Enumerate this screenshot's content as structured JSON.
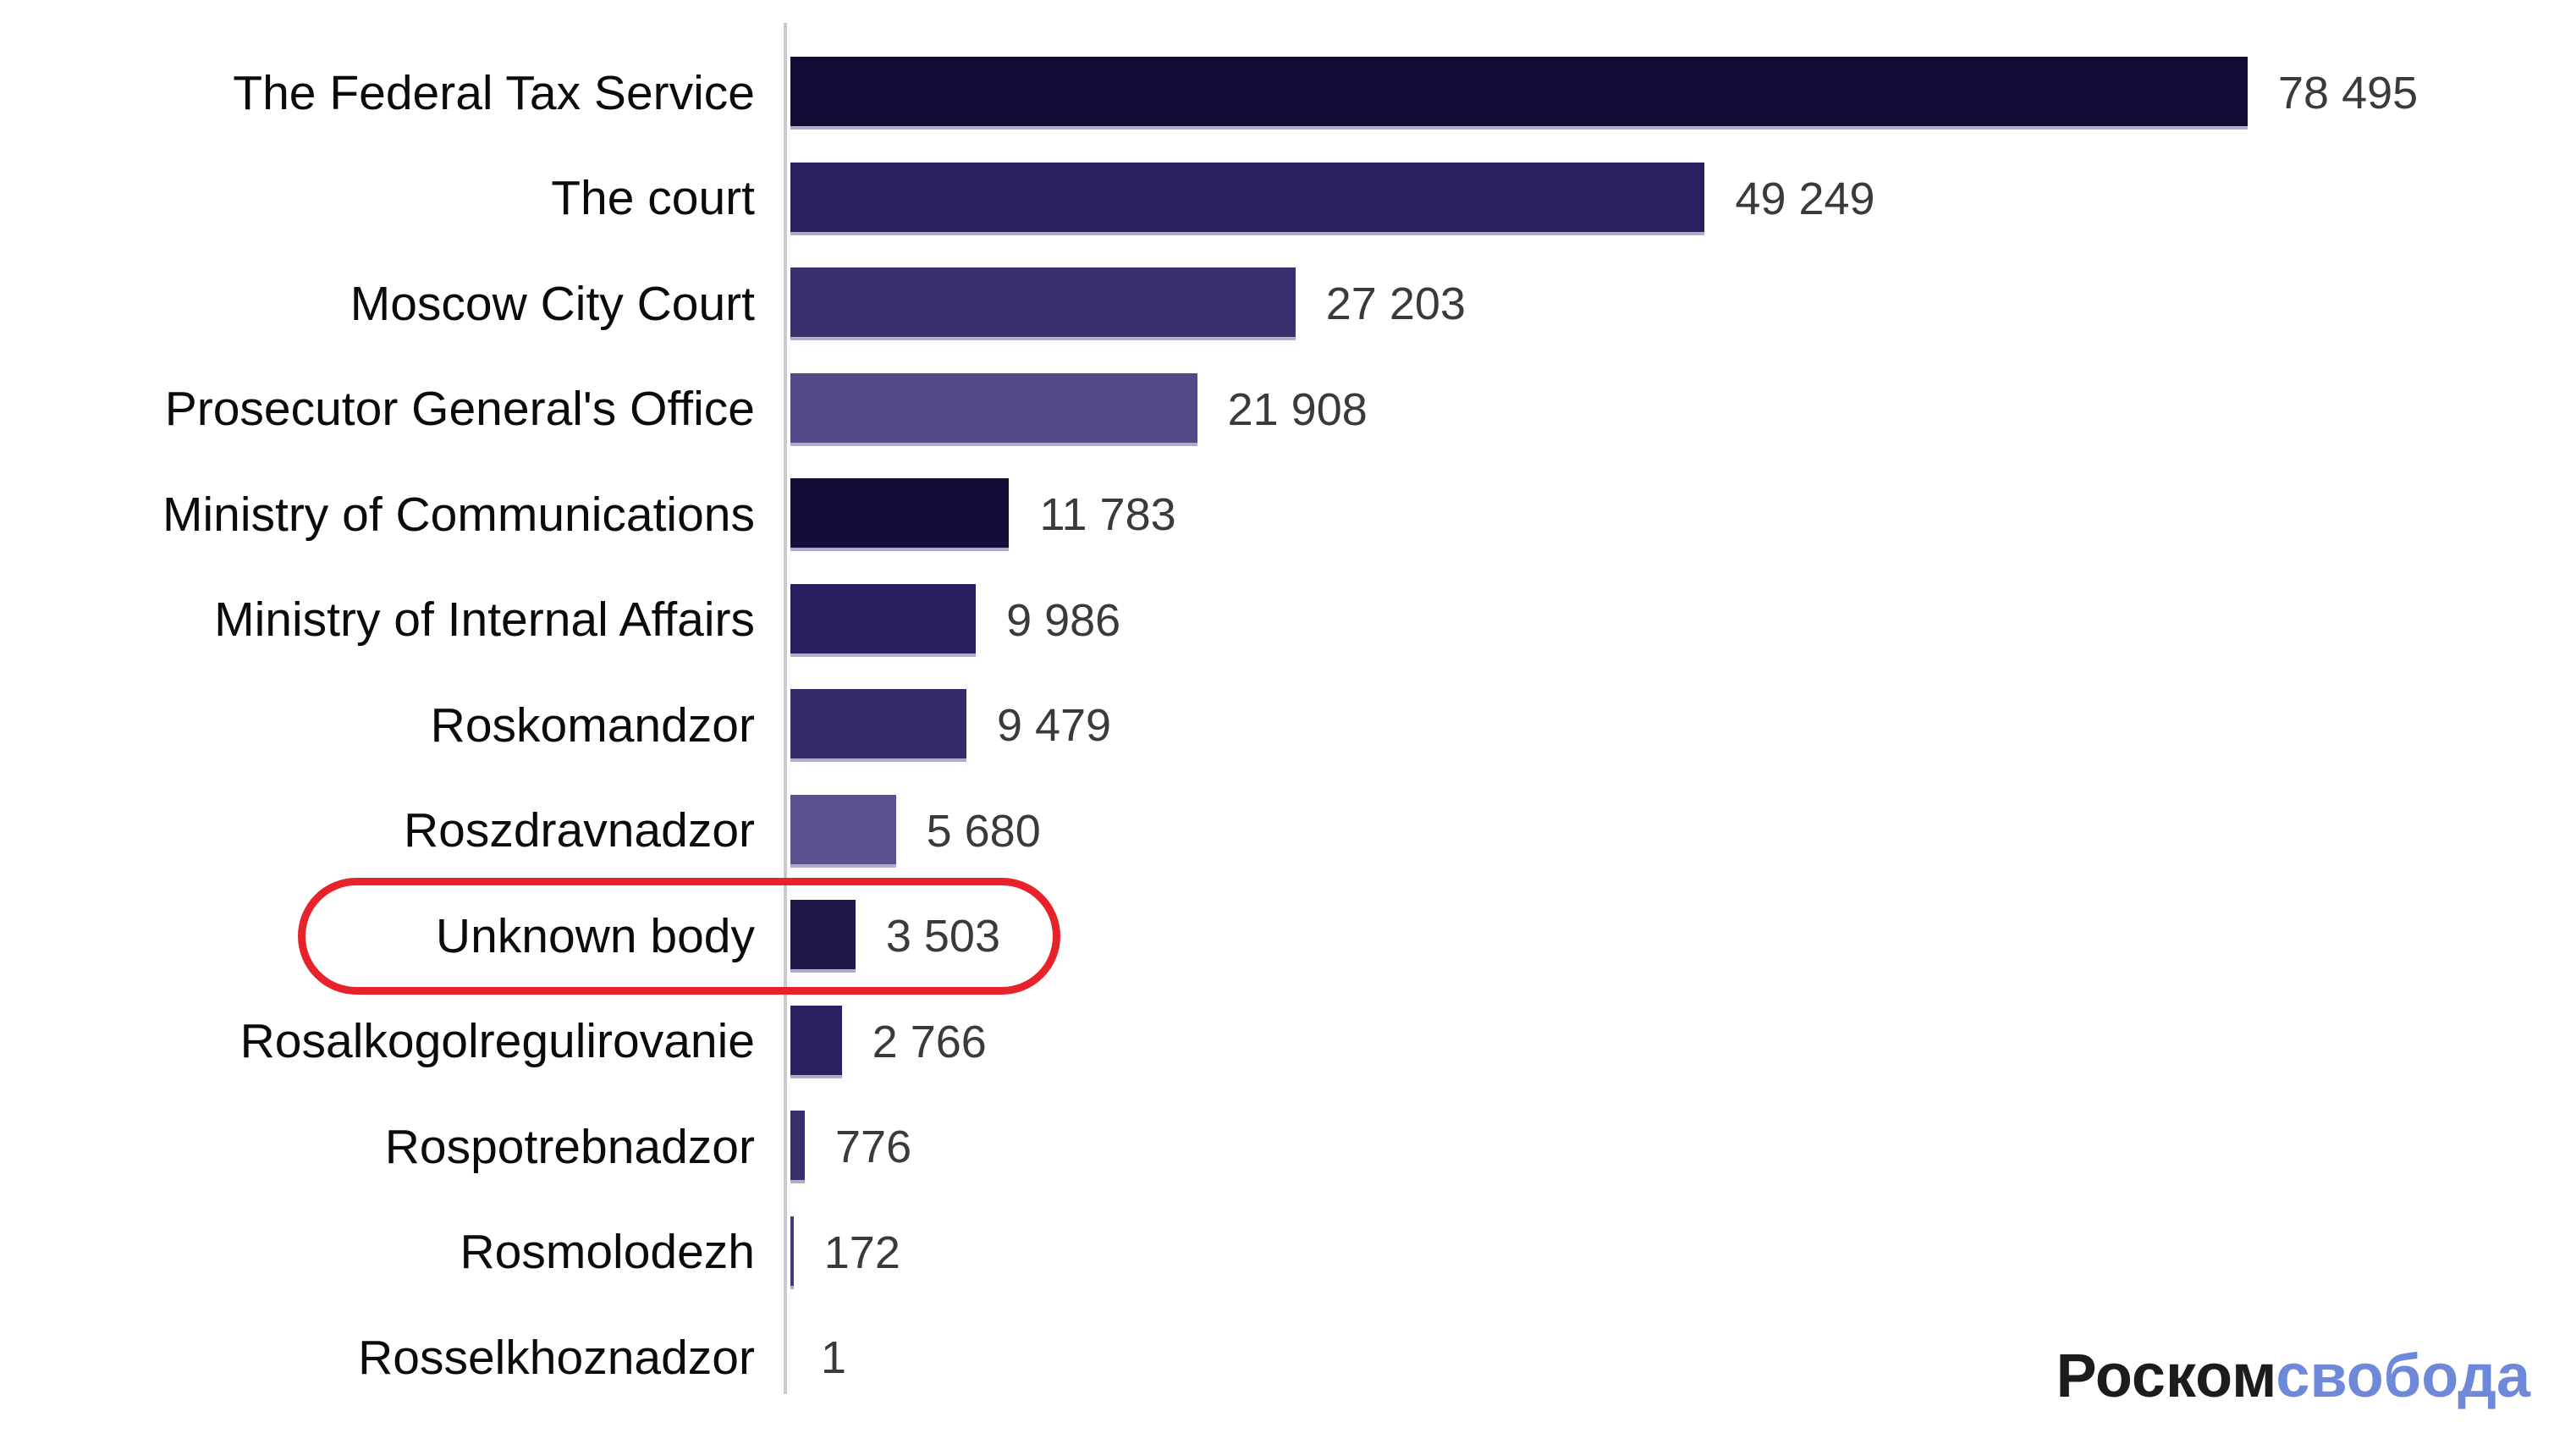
{
  "chart_data": {
    "type": "bar",
    "orientation": "horizontal",
    "title": "",
    "xlabel": "",
    "ylabel": "",
    "grid": false,
    "legend": false,
    "xlim": [
      0,
      80000
    ],
    "categories": [
      "The Federal Tax Service",
      "The court",
      "Moscow City Court",
      "Prosecutor General's Office",
      "Ministry of Communications",
      "Ministry of Internal Affairs",
      "Roskomandzor",
      "Roszdravnadzor",
      "Unknown body",
      "Rosalkogolregulirovanie",
      "Rospotrebnadzor",
      "Rosmolodezh",
      "Rosselkhoznadzor"
    ],
    "values": [
      78495,
      49249,
      27203,
      21908,
      11783,
      9986,
      9479,
      5680,
      3503,
      2766,
      776,
      172,
      1
    ],
    "value_labels": [
      "78 495",
      "49 249",
      "27 203",
      "21 908",
      "11 783",
      "9 986",
      "9 479",
      "5 680",
      "3 503",
      "2 766",
      "776",
      "172",
      "1"
    ],
    "bar_colors": [
      "#130b33",
      "#29205f",
      "#3a2f6e",
      "#544886",
      "#150c37",
      "#281e60",
      "#362b69",
      "#5c518f",
      "#211749",
      "#2b2162",
      "#38306b",
      "#453a78",
      "#453a78"
    ],
    "highlight": {
      "category": "Unknown body",
      "index": 8,
      "ring_color": "#e7222b"
    }
  },
  "logo": {
    "prefix": "Роском",
    "suffix": "свобода",
    "prefix_color": "#1c1c1c",
    "suffix_color": "#6e89da"
  },
  "style_colors": {
    "background": "#ffffff",
    "axis_line": "#c9c8d3",
    "bar_bottom_edge": "#b2aacb",
    "label_text": "#0b0b0b",
    "value_text": "#3a3a3a"
  }
}
